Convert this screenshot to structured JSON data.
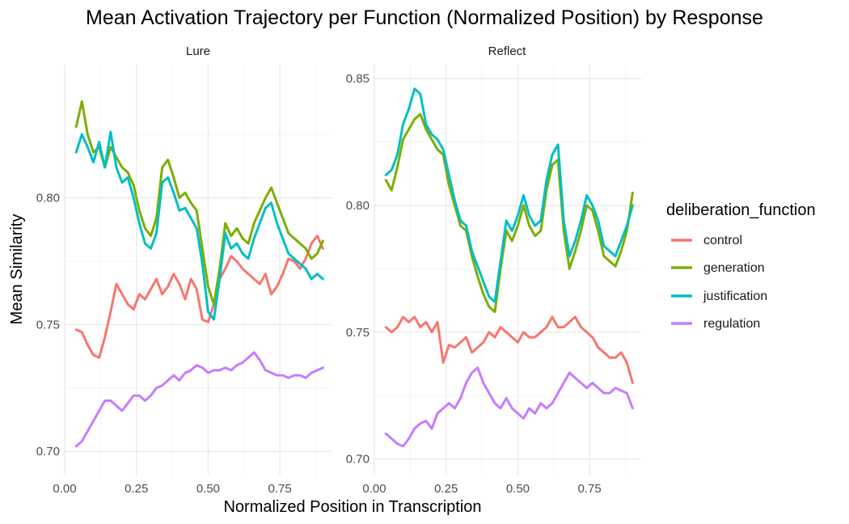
{
  "chart_data": {
    "type": "line",
    "title": "Mean Activation Trajectory per Function (Normalized Position) by Response",
    "xlabel": "Normalized Position in Transcription",
    "ylabel": "Mean Similarity",
    "grid": true,
    "legend": {
      "title": "deliberation_function",
      "placement": "right",
      "entries": [
        "control",
        "generation",
        "justification",
        "regulation"
      ]
    },
    "colors": {
      "control": "#F8766D",
      "generation": "#7CAE00",
      "justification": "#00BFC4",
      "regulation": "#C77CFF"
    },
    "x": [
      0.04,
      0.06,
      0.08,
      0.1,
      0.12,
      0.14,
      0.16,
      0.18,
      0.2,
      0.22,
      0.24,
      0.26,
      0.28,
      0.3,
      0.32,
      0.34,
      0.36,
      0.38,
      0.4,
      0.42,
      0.44,
      0.46,
      0.48,
      0.5,
      0.52,
      0.54,
      0.56,
      0.58,
      0.6,
      0.62,
      0.64,
      0.66,
      0.68,
      0.7,
      0.72,
      0.74,
      0.76,
      0.78,
      0.8,
      0.82,
      0.84,
      0.86,
      0.88,
      0.9
    ],
    "panels": [
      {
        "name": "Lure",
        "xlim": [
          0,
          0.93
        ],
        "ylim": [
          0.6905,
          0.8525
        ],
        "xticks": [
          "0.00",
          "0.25",
          "0.50",
          "0.75"
        ],
        "xtick_values": [
          0,
          0.25,
          0.5,
          0.75
        ],
        "yticks": [
          "0.70",
          "0.75",
          "0.80"
        ],
        "ytick_values": [
          0.7,
          0.75,
          0.8
        ],
        "series": [
          {
            "name": "control",
            "values": [
              0.748,
              0.747,
              0.742,
              0.738,
              0.737,
              0.745,
              0.755,
              0.766,
              0.762,
              0.758,
              0.756,
              0.762,
              0.76,
              0.764,
              0.768,
              0.762,
              0.765,
              0.77,
              0.766,
              0.76,
              0.768,
              0.764,
              0.752,
              0.751,
              0.758,
              0.768,
              0.772,
              0.777,
              0.775,
              0.772,
              0.77,
              0.768,
              0.766,
              0.77,
              0.762,
              0.765,
              0.77,
              0.776,
              0.775,
              0.772,
              0.776,
              0.782,
              0.785,
              0.78
            ]
          },
          {
            "name": "generation",
            "values": [
              0.828,
              0.838,
              0.825,
              0.818,
              0.82,
              0.812,
              0.82,
              0.816,
              0.812,
              0.81,
              0.805,
              0.795,
              0.788,
              0.785,
              0.792,
              0.812,
              0.815,
              0.808,
              0.8,
              0.802,
              0.798,
              0.795,
              0.78,
              0.765,
              0.758,
              0.772,
              0.79,
              0.785,
              0.788,
              0.784,
              0.782,
              0.79,
              0.795,
              0.8,
              0.804,
              0.798,
              0.792,
              0.786,
              0.784,
              0.782,
              0.78,
              0.776,
              0.778,
              0.783
            ]
          },
          {
            "name": "justification",
            "values": [
              0.818,
              0.825,
              0.82,
              0.814,
              0.822,
              0.812,
              0.826,
              0.812,
              0.806,
              0.808,
              0.8,
              0.79,
              0.782,
              0.78,
              0.786,
              0.806,
              0.808,
              0.802,
              0.795,
              0.796,
              0.792,
              0.788,
              0.774,
              0.755,
              0.752,
              0.768,
              0.786,
              0.78,
              0.782,
              0.778,
              0.776,
              0.784,
              0.79,
              0.796,
              0.798,
              0.79,
              0.784,
              0.778,
              0.776,
              0.774,
              0.772,
              0.768,
              0.77,
              0.768
            ]
          },
          {
            "name": "regulation",
            "values": [
              0.702,
              0.704,
              0.708,
              0.712,
              0.716,
              0.72,
              0.72,
              0.718,
              0.716,
              0.719,
              0.722,
              0.722,
              0.72,
              0.722,
              0.725,
              0.726,
              0.728,
              0.73,
              0.728,
              0.731,
              0.732,
              0.734,
              0.733,
              0.731,
              0.732,
              0.732,
              0.733,
              0.732,
              0.734,
              0.735,
              0.737,
              0.739,
              0.736,
              0.732,
              0.731,
              0.73,
              0.73,
              0.729,
              0.73,
              0.73,
              0.729,
              0.731,
              0.732,
              0.733
            ]
          }
        ]
      },
      {
        "name": "Reflect",
        "xlim": [
          0,
          0.93
        ],
        "ylim": [
          0.6935,
          0.8555
        ],
        "xticks": [
          "0.00",
          "0.25",
          "0.50",
          "0.75"
        ],
        "xtick_values": [
          0,
          0.25,
          0.5,
          0.75
        ],
        "yticks": [
          "0.70",
          "0.75",
          "0.80",
          "0.85"
        ],
        "ytick_values": [
          0.7,
          0.75,
          0.8,
          0.85
        ],
        "series": [
          {
            "name": "control",
            "values": [
              0.752,
              0.75,
              0.752,
              0.756,
              0.754,
              0.756,
              0.752,
              0.754,
              0.75,
              0.754,
              0.738,
              0.745,
              0.744,
              0.746,
              0.748,
              0.742,
              0.744,
              0.746,
              0.75,
              0.748,
              0.752,
              0.75,
              0.748,
              0.746,
              0.75,
              0.748,
              0.748,
              0.75,
              0.752,
              0.756,
              0.752,
              0.752,
              0.754,
              0.756,
              0.752,
              0.75,
              0.748,
              0.744,
              0.742,
              0.74,
              0.74,
              0.742,
              0.738,
              0.73
            ]
          },
          {
            "name": "generation",
            "values": [
              0.81,
              0.806,
              0.815,
              0.826,
              0.83,
              0.834,
              0.836,
              0.83,
              0.826,
              0.822,
              0.82,
              0.808,
              0.8,
              0.792,
              0.79,
              0.78,
              0.772,
              0.765,
              0.76,
              0.758,
              0.775,
              0.79,
              0.786,
              0.792,
              0.8,
              0.792,
              0.788,
              0.79,
              0.806,
              0.816,
              0.818,
              0.79,
              0.775,
              0.782,
              0.79,
              0.8,
              0.798,
              0.79,
              0.78,
              0.778,
              0.776,
              0.782,
              0.79,
              0.805
            ]
          },
          {
            "name": "justification",
            "values": [
              0.812,
              0.814,
              0.82,
              0.832,
              0.838,
              0.846,
              0.844,
              0.832,
              0.828,
              0.826,
              0.822,
              0.812,
              0.802,
              0.794,
              0.792,
              0.782,
              0.776,
              0.77,
              0.764,
              0.762,
              0.778,
              0.794,
              0.79,
              0.796,
              0.804,
              0.796,
              0.792,
              0.794,
              0.81,
              0.82,
              0.824,
              0.794,
              0.78,
              0.786,
              0.794,
              0.804,
              0.8,
              0.794,
              0.784,
              0.782,
              0.78,
              0.786,
              0.792,
              0.8
            ]
          },
          {
            "name": "regulation",
            "values": [
              0.71,
              0.708,
              0.706,
              0.705,
              0.708,
              0.712,
              0.714,
              0.715,
              0.712,
              0.718,
              0.72,
              0.722,
              0.72,
              0.724,
              0.73,
              0.734,
              0.736,
              0.73,
              0.726,
              0.722,
              0.72,
              0.724,
              0.72,
              0.718,
              0.716,
              0.72,
              0.718,
              0.722,
              0.72,
              0.722,
              0.726,
              0.73,
              0.734,
              0.732,
              0.73,
              0.728,
              0.73,
              0.728,
              0.726,
              0.726,
              0.728,
              0.727,
              0.726,
              0.72
            ]
          }
        ]
      }
    ]
  }
}
